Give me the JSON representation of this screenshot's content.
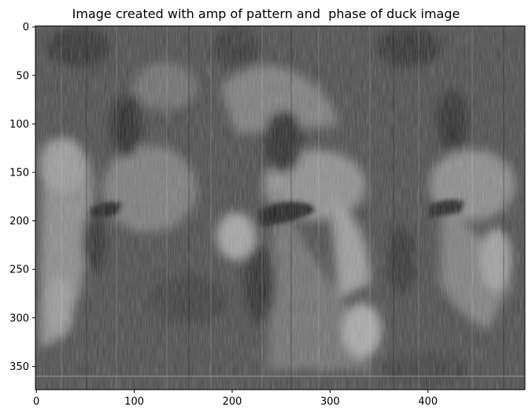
{
  "title": "Image created with amp of pattern and  phase of duck image",
  "axes": {
    "x_ticks": [
      {
        "value": 0,
        "label": "0"
      },
      {
        "value": 100,
        "label": "100"
      },
      {
        "value": 200,
        "label": "200"
      },
      {
        "value": 300,
        "label": "300"
      },
      {
        "value": 400,
        "label": "400"
      }
    ],
    "y_ticks": [
      {
        "value": 0,
        "label": "0"
      },
      {
        "value": 50,
        "label": "50"
      },
      {
        "value": 100,
        "label": "100"
      },
      {
        "value": 150,
        "label": "150"
      },
      {
        "value": 200,
        "label": "200"
      },
      {
        "value": 250,
        "label": "250"
      },
      {
        "value": 300,
        "label": "300"
      },
      {
        "value": 350,
        "label": "350"
      }
    ],
    "x_range": [
      0,
      500
    ],
    "y_range": [
      0,
      375
    ],
    "y_inverted": true
  },
  "image": {
    "description": "grayscale",
    "colormap": "gray"
  }
}
